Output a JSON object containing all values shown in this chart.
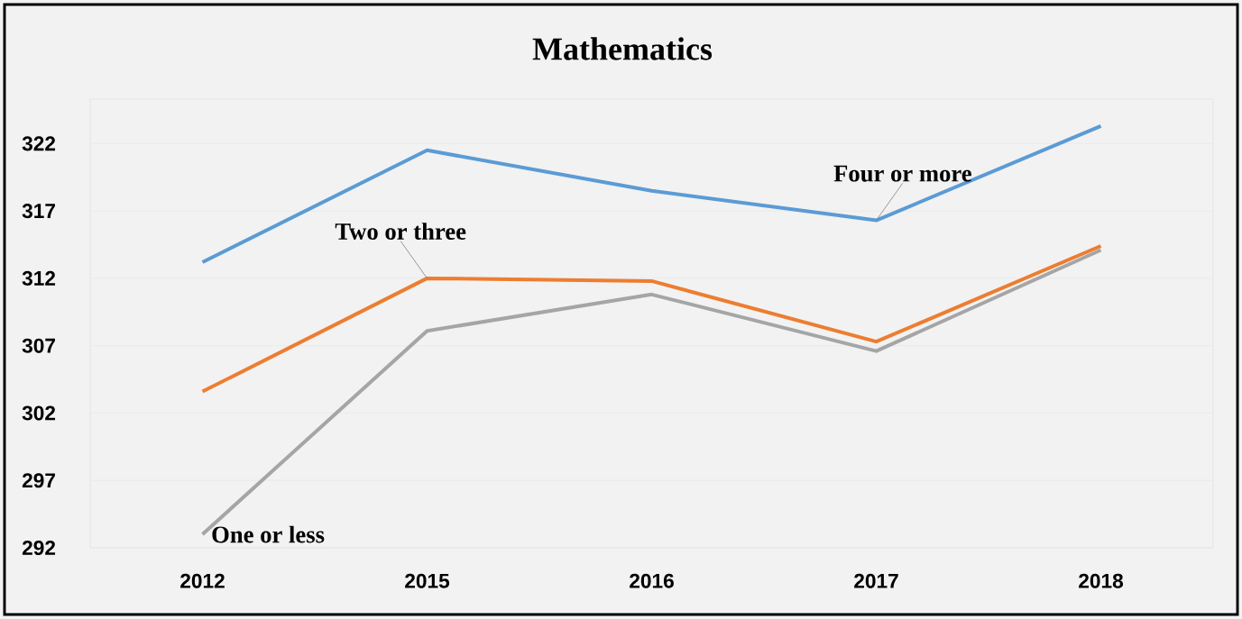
{
  "chart_data": {
    "type": "line",
    "title": "Mathematics",
    "categories": [
      "2012",
      "2015",
      "2016",
      "2017",
      "2018"
    ],
    "series": [
      {
        "color": "#5b9bd5",
        "values": [
          313.2,
          321.5,
          318.5,
          316.3,
          323.3
        ]
      },
      {
        "color": "#ed7d31",
        "values": [
          303.6,
          312.0,
          311.8,
          307.3,
          314.4
        ]
      },
      {
        "color": "#a5a5a5",
        "values": [
          293.0,
          308.1,
          310.8,
          306.6,
          314.1
        ]
      }
    ],
    "ylim": [
      292,
      325.3
    ],
    "yticks": [
      292,
      297,
      302,
      307,
      312,
      317,
      322
    ],
    "grid": "y",
    "marker": "none",
    "line_style": "solid",
    "annotations": [
      {
        "text": "Four or more",
        "x": "2017",
        "y": 316.3
      },
      {
        "text": "Two or three",
        "x": "2015",
        "y": 312.0
      },
      {
        "text": "One or less",
        "x": "2012",
        "y": 293.0
      }
    ]
  }
}
